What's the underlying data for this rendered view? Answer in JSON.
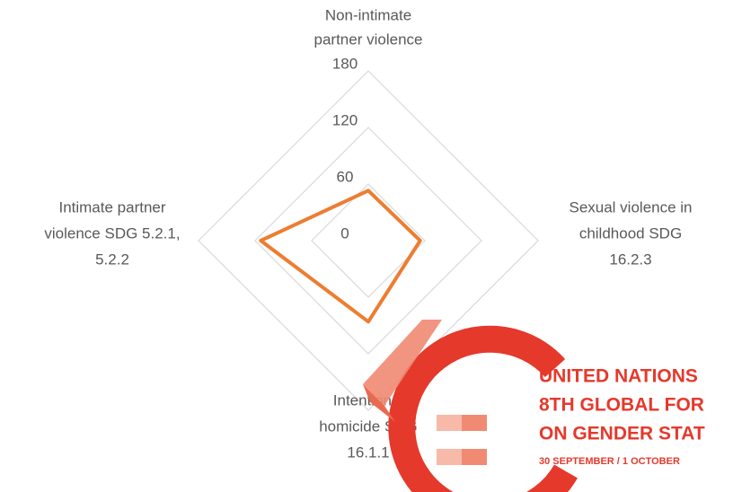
{
  "chart_data": {
    "type": "radar",
    "categories": [
      [
        "Non-intimate",
        "partner violence"
      ],
      [
        "Sexual violence in",
        "childhood SDG",
        "16.2.3"
      ],
      [
        "Intentional",
        "homicide SDG",
        "16.1.1"
      ],
      [
        "Intimate partner",
        "violence SDG 5.2.1,",
        "5.2.2"
      ]
    ],
    "values": [
      53,
      55,
      86,
      114
    ],
    "color": "#ed7d31",
    "ylim": [
      0,
      180
    ],
    "yticks": [
      0,
      60,
      120,
      180
    ],
    "grid": true
  },
  "logo": {
    "lines": [
      "UNITED NATIONS",
      "8TH GLOBAL FOR",
      "ON GENDER STAT",
      "30 SEPTEMBER / 1 OCTOBER"
    ]
  }
}
